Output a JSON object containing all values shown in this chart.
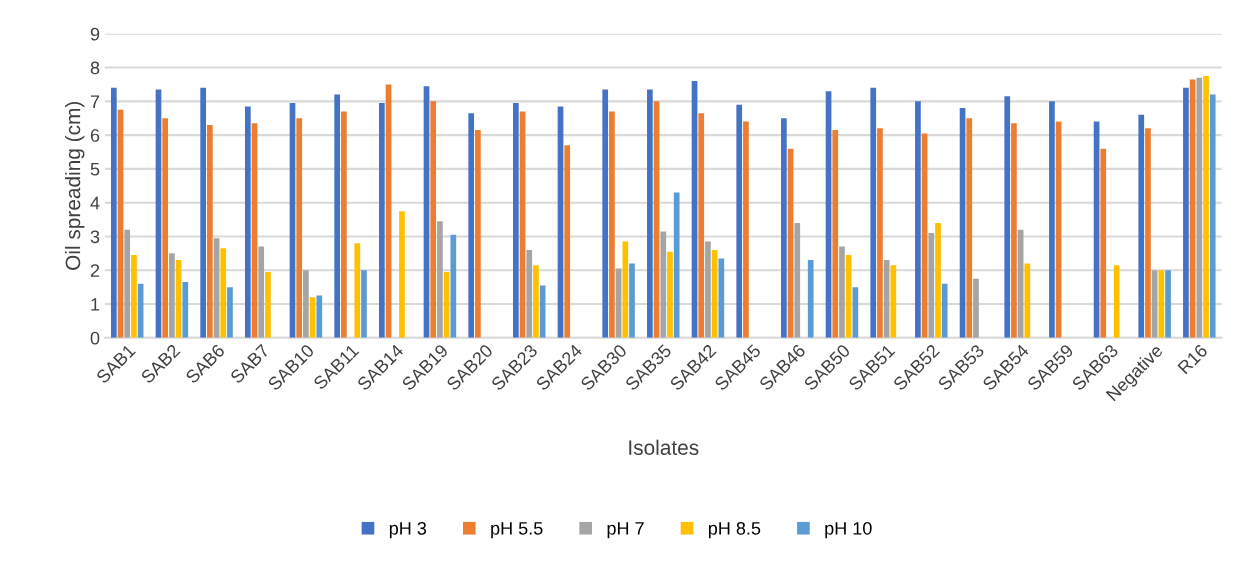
{
  "chart_data": {
    "type": "bar",
    "xlabel": "Isolates",
    "ylabel": "Oil spreading (cm)",
    "categories": [
      "SAB1",
      "SAB2",
      "SAB6",
      "SAB7",
      "SAB10",
      "SAB11",
      "SAB14",
      "SAB19",
      "SAB20",
      "SAB23",
      "SAB24",
      "SAB30",
      "SAB35",
      "SAB42",
      "SAB45",
      "SAB46",
      "SAB50",
      "SAB51",
      "SAB52",
      "SAB53",
      "SAB54",
      "SAB59",
      "SAB63",
      "Negative",
      "R16"
    ],
    "series": [
      {
        "name": "pH 3",
        "color": "#4472c4",
        "values": [
          7.4,
          7.35,
          7.4,
          6.85,
          6.95,
          7.2,
          6.95,
          7.45,
          6.65,
          6.95,
          6.85,
          7.35,
          7.35,
          7.6,
          6.9,
          6.5,
          7.3,
          7.4,
          7.0,
          6.8,
          7.15,
          7.0,
          6.4,
          6.6,
          7.4
        ]
      },
      {
        "name": "pH 5.5",
        "color": "#ed7d31",
        "values": [
          6.75,
          6.5,
          6.3,
          6.35,
          6.5,
          6.7,
          7.5,
          7.0,
          6.15,
          6.7,
          5.7,
          6.7,
          7.0,
          6.65,
          6.4,
          5.6,
          6.15,
          6.2,
          6.05,
          6.5,
          6.35,
          6.4,
          5.6,
          6.2,
          7.65
        ]
      },
      {
        "name": "pH 7",
        "color": "#a5a5a5",
        "values": [
          3.2,
          2.5,
          2.95,
          2.7,
          2.0,
          null,
          null,
          3.45,
          null,
          2.6,
          null,
          2.05,
          3.15,
          2.85,
          null,
          3.4,
          2.7,
          2.3,
          3.1,
          1.75,
          3.2,
          null,
          null,
          2.0,
          7.7
        ]
      },
      {
        "name": "pH 8.5",
        "color": "#ffc000",
        "values": [
          2.45,
          2.3,
          2.65,
          1.95,
          1.2,
          2.8,
          3.75,
          1.95,
          null,
          2.15,
          null,
          2.85,
          2.55,
          2.6,
          null,
          null,
          2.45,
          2.15,
          3.4,
          null,
          2.2,
          null,
          2.15,
          2.0,
          7.75
        ]
      },
      {
        "name": "pH 10",
        "color": "#5b9bd5",
        "values": [
          1.6,
          1.65,
          1.5,
          null,
          1.25,
          2.0,
          null,
          3.05,
          null,
          1.55,
          null,
          2.2,
          4.3,
          2.35,
          null,
          2.3,
          1.5,
          null,
          1.6,
          null,
          null,
          null,
          null,
          2.0,
          7.2
        ]
      }
    ],
    "ylim": [
      0,
      9
    ],
    "yticks": [
      0,
      1,
      2,
      3,
      4,
      5,
      6,
      7,
      8,
      9
    ],
    "grid": "y",
    "legend": "bottom"
  }
}
